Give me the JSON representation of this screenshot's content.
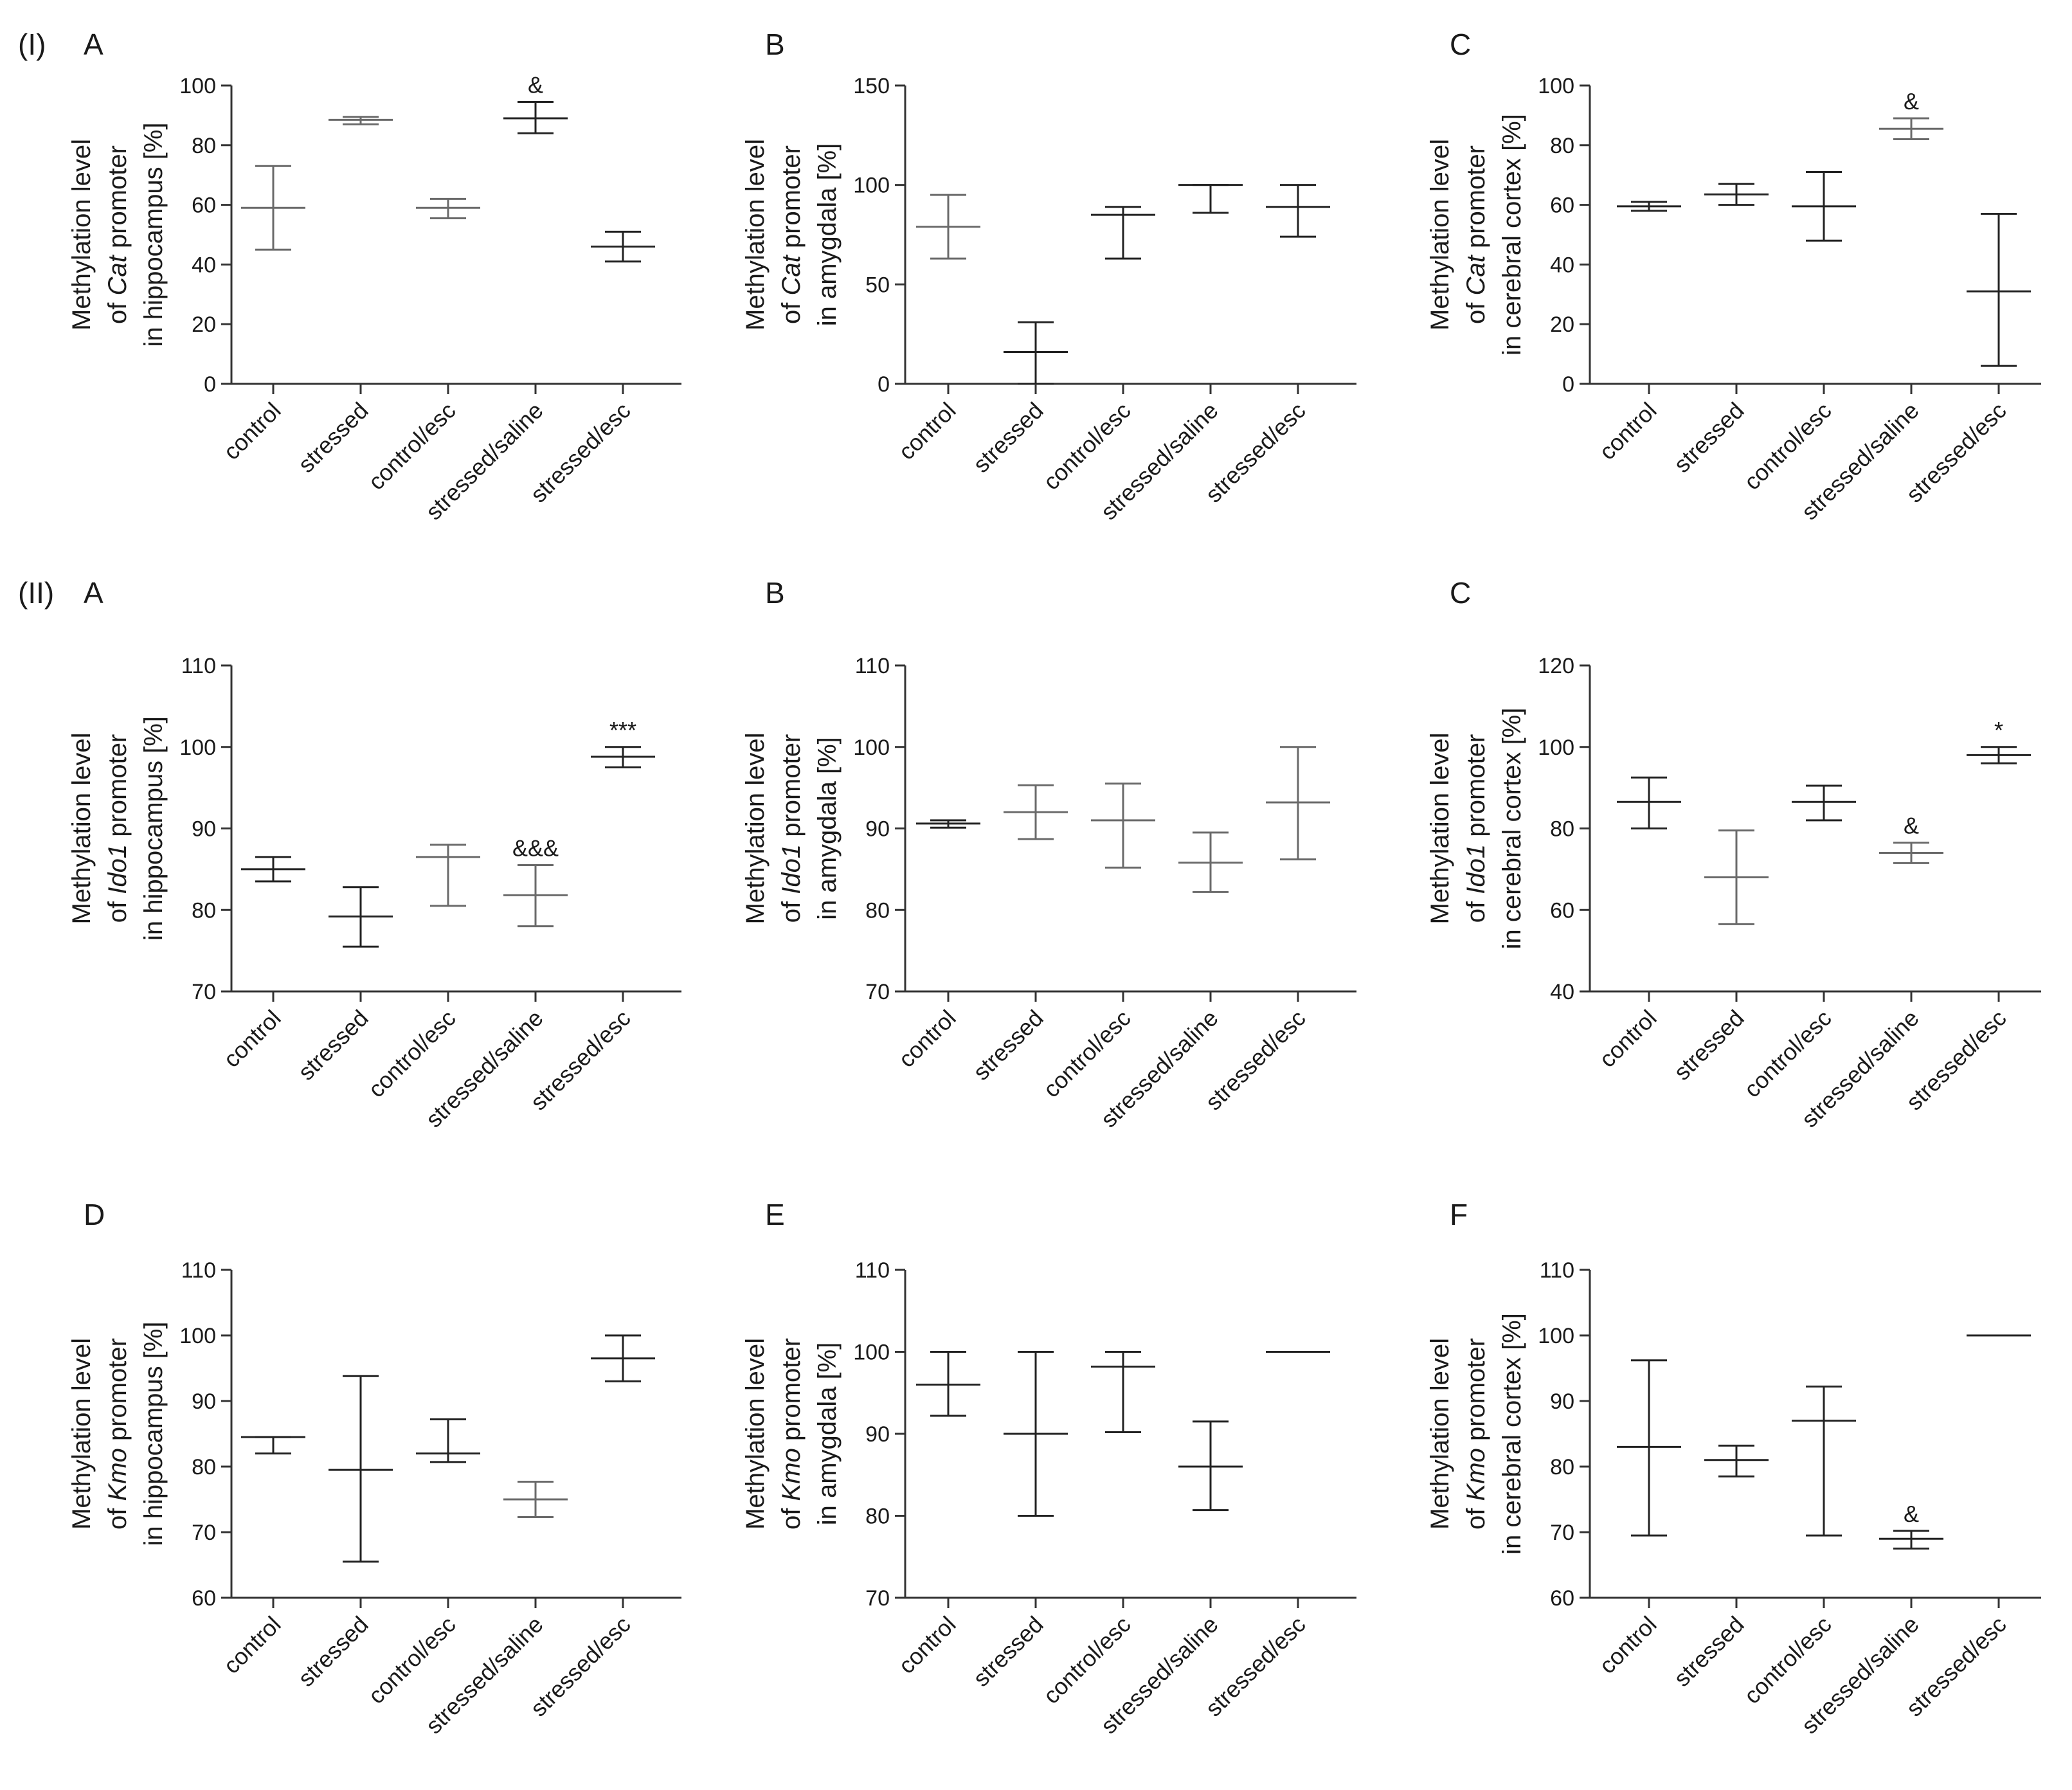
{
  "section_labels": [
    "(I)",
    "(II)"
  ],
  "chart_data": [
    {
      "panel": "A",
      "section": "(I)",
      "type": "errorbar",
      "ylabel_lines": [
        [
          {
            "t": "Methylation level"
          }
        ],
        [
          {
            "t": "of "
          },
          {
            "t": "Cat",
            "i": true
          },
          {
            "t": " promoter"
          }
        ],
        [
          {
            "t": "in hippocampus  [%]"
          }
        ]
      ],
      "ylim": [
        0,
        100
      ],
      "yticks": [
        0,
        20,
        40,
        60,
        80,
        100
      ],
      "categories": [
        "control",
        "stressed",
        "control/esc",
        "stressed/saline",
        "stressed/esc"
      ],
      "values": [
        59,
        88.5,
        59,
        89,
        46
      ],
      "upper": [
        73,
        89.5,
        62,
        94.5,
        51
      ],
      "lower": [
        45,
        87,
        55.5,
        84,
        41
      ],
      "colors": [
        "#6a6a6a",
        "#6a6a6a",
        "#6a6a6a",
        "#222222",
        "#222222"
      ],
      "annotations": [
        {
          "index": 3,
          "text": "&"
        }
      ]
    },
    {
      "panel": "B",
      "section": "(I)",
      "type": "errorbar",
      "ylabel_lines": [
        [
          {
            "t": "Methylation level"
          }
        ],
        [
          {
            "t": "of "
          },
          {
            "t": "Cat",
            "i": true
          },
          {
            "t": " promoter"
          }
        ],
        [
          {
            "t": "in amygdala  [%]"
          }
        ]
      ],
      "ylim": [
        0,
        150
      ],
      "yticks": [
        0,
        50,
        100,
        150
      ],
      "categories": [
        "control",
        "stressed",
        "control/esc",
        "stressed/saline",
        "stressed/esc"
      ],
      "values": [
        79,
        16,
        85,
        100,
        89
      ],
      "upper": [
        95,
        31,
        89,
        100,
        100
      ],
      "lower": [
        63,
        0,
        63,
        86,
        74
      ],
      "colors": [
        "#6a6a6a",
        "#222222",
        "#222222",
        "#222222",
        "#222222"
      ],
      "annotations": []
    },
    {
      "panel": "C",
      "section": "(I)",
      "type": "errorbar",
      "ylabel_lines": [
        [
          {
            "t": "Methylation level"
          }
        ],
        [
          {
            "t": "of "
          },
          {
            "t": "Cat",
            "i": true
          },
          {
            "t": " promoter"
          }
        ],
        [
          {
            "t": "in cerebral cortex  [%]"
          }
        ]
      ],
      "ylim": [
        0,
        100
      ],
      "yticks": [
        0,
        20,
        40,
        60,
        80,
        100
      ],
      "categories": [
        "control",
        "stressed",
        "control/esc",
        "stressed/saline",
        "stressed/esc"
      ],
      "values": [
        59.5,
        63.5,
        59.5,
        85.5,
        31
      ],
      "upper": [
        61,
        67,
        71,
        89,
        57
      ],
      "lower": [
        58,
        60,
        48,
        82,
        6
      ],
      "colors": [
        "#222222",
        "#222222",
        "#222222",
        "#6a6a6a",
        "#222222"
      ],
      "annotations": [
        {
          "index": 3,
          "text": "&"
        }
      ]
    },
    {
      "panel": "A",
      "section": "(II)",
      "type": "errorbar",
      "ylabel_lines": [
        [
          {
            "t": "Methylation level"
          }
        ],
        [
          {
            "t": "of "
          },
          {
            "t": "Ido1",
            "i": true
          },
          {
            "t": " promoter"
          }
        ],
        [
          {
            "t": "in hippocampus  [%]"
          }
        ]
      ],
      "ylim": [
        70,
        110
      ],
      "yticks": [
        70,
        80,
        90,
        100,
        110
      ],
      "categories": [
        "control",
        "stressed",
        "control/esc",
        "stressed/saline",
        "stressed/esc"
      ],
      "values": [
        85,
        79.2,
        86.5,
        81.8,
        98.8
      ],
      "upper": [
        86.5,
        82.8,
        88,
        85.5,
        100
      ],
      "lower": [
        83.5,
        75.5,
        80.5,
        78,
        97.5
      ],
      "colors": [
        "#222222",
        "#222222",
        "#6a6a6a",
        "#6a6a6a",
        "#222222"
      ],
      "annotations": [
        {
          "index": 3,
          "text": "&&&"
        },
        {
          "index": 4,
          "text": "***"
        }
      ]
    },
    {
      "panel": "B",
      "section": "(II)",
      "type": "errorbar",
      "ylabel_lines": [
        [
          {
            "t": "Methylation level"
          }
        ],
        [
          {
            "t": "of "
          },
          {
            "t": "Ido1",
            "i": true
          },
          {
            "t": " promoter"
          }
        ],
        [
          {
            "t": "in amygdala [%]"
          }
        ]
      ],
      "ylim": [
        70,
        110
      ],
      "yticks": [
        70,
        80,
        90,
        100,
        110
      ],
      "categories": [
        "control",
        "stressed",
        "control/esc",
        "stressed/saline",
        "stressed/esc"
      ],
      "values": [
        90.6,
        92,
        91,
        85.8,
        93.2
      ],
      "upper": [
        91,
        95.3,
        95.5,
        89.5,
        100
      ],
      "lower": [
        90.1,
        88.7,
        85.2,
        82.2,
        86.2
      ],
      "colors": [
        "#222222",
        "#6a6a6a",
        "#6a6a6a",
        "#6a6a6a",
        "#6a6a6a"
      ],
      "annotations": []
    },
    {
      "panel": "C",
      "section": "(II)",
      "type": "errorbar",
      "ylabel_lines": [
        [
          {
            "t": "Methylation level"
          }
        ],
        [
          {
            "t": "of "
          },
          {
            "t": "Ido1",
            "i": true
          },
          {
            "t": " promoter"
          }
        ],
        [
          {
            "t": "in cerebral cortex [%]"
          }
        ]
      ],
      "ylim": [
        40,
        120
      ],
      "yticks": [
        40,
        60,
        80,
        100,
        120
      ],
      "categories": [
        "control",
        "stressed",
        "control/esc",
        "stressed/saline",
        "stressed/esc"
      ],
      "values": [
        86.5,
        68,
        86.5,
        74,
        98
      ],
      "upper": [
        92.5,
        79.5,
        90.5,
        76.5,
        100
      ],
      "lower": [
        80,
        56.5,
        82,
        71.5,
        96
      ],
      "colors": [
        "#222222",
        "#6a6a6a",
        "#222222",
        "#6a6a6a",
        "#222222"
      ],
      "annotations": [
        {
          "index": 3,
          "text": "&"
        },
        {
          "index": 4,
          "text": "*"
        }
      ]
    },
    {
      "panel": "D",
      "section": "",
      "type": "errorbar",
      "ylabel_lines": [
        [
          {
            "t": "Methylation level"
          }
        ],
        [
          {
            "t": "of "
          },
          {
            "t": "Kmo",
            "i": true
          },
          {
            "t": " promoter"
          }
        ],
        [
          {
            "t": "in hippocampus [%]"
          }
        ]
      ],
      "ylim": [
        60,
        110
      ],
      "yticks": [
        60,
        70,
        80,
        90,
        100,
        110
      ],
      "categories": [
        "control",
        "stressed",
        "control/esc",
        "stressed/saline",
        "stressed/esc"
      ],
      "values": [
        84.5,
        79.5,
        82,
        75,
        96.5
      ],
      "upper": [
        84.5,
        93.8,
        87.2,
        77.7,
        100
      ],
      "lower": [
        82,
        65.5,
        80.7,
        72.3,
        93
      ],
      "colors": [
        "#222222",
        "#222222",
        "#222222",
        "#6a6a6a",
        "#222222"
      ],
      "annotations": []
    },
    {
      "panel": "E",
      "section": "",
      "type": "errorbar",
      "ylabel_lines": [
        [
          {
            "t": "Methylation level"
          }
        ],
        [
          {
            "t": "of "
          },
          {
            "t": "Kmo",
            "i": true
          },
          {
            "t": " promoter"
          }
        ],
        [
          {
            "t": "in amygdala [%]"
          }
        ]
      ],
      "ylim": [
        70,
        110
      ],
      "yticks": [
        70,
        80,
        90,
        100,
        110
      ],
      "categories": [
        "control",
        "stressed",
        "control/esc",
        "stressed/saline",
        "stressed/esc"
      ],
      "values": [
        96,
        90,
        98.2,
        86,
        100
      ],
      "upper": [
        100,
        100,
        100,
        91.5,
        100
      ],
      "lower": [
        92.2,
        80,
        90.2,
        80.7,
        100
      ],
      "colors": [
        "#222222",
        "#222222",
        "#222222",
        "#222222",
        "#222222"
      ],
      "annotations": []
    },
    {
      "panel": "F",
      "section": "",
      "type": "errorbar",
      "ylabel_lines": [
        [
          {
            "t": "Methylation level"
          }
        ],
        [
          {
            "t": "of "
          },
          {
            "t": "Kmo",
            "i": true
          },
          {
            "t": " promoter"
          }
        ],
        [
          {
            "t": "in cerebral cortex [%]"
          }
        ]
      ],
      "ylim": [
        60,
        110
      ],
      "yticks": [
        60,
        70,
        80,
        90,
        100,
        110
      ],
      "categories": [
        "control",
        "stressed",
        "control/esc",
        "stressed/saline",
        "stressed/esc"
      ],
      "values": [
        83,
        81,
        87,
        69,
        100
      ],
      "upper": [
        96.2,
        83.2,
        92.2,
        70.2,
        100
      ],
      "lower": [
        69.5,
        78.5,
        69.5,
        67.5,
        100
      ],
      "colors": [
        "#222222",
        "#222222",
        "#222222",
        "#222222",
        "#222222"
      ],
      "annotations": [
        {
          "index": 3,
          "text": "&"
        }
      ]
    }
  ]
}
